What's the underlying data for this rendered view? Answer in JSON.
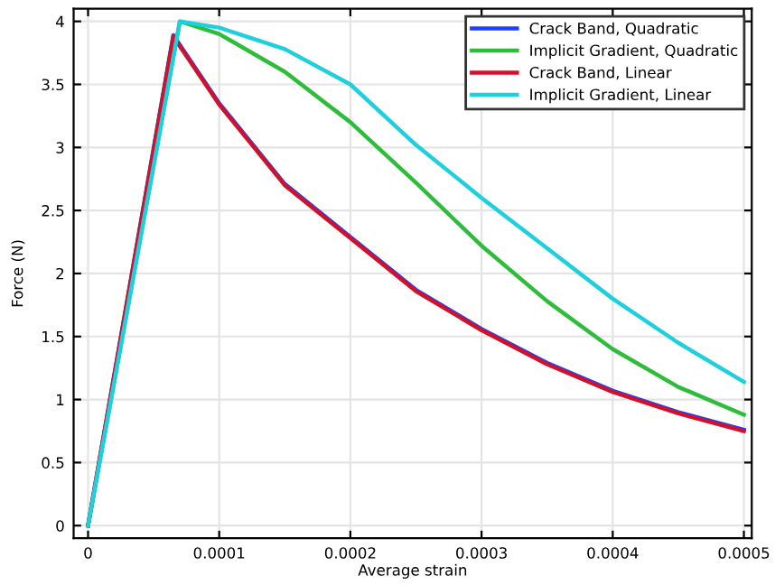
{
  "chart_data": {
    "type": "line",
    "xlabel": "Average strain",
    "ylabel": "Force (N)",
    "xlim": [
      -1.1e-05,
      0.000506
    ],
    "ylim": [
      -0.1,
      4.1
    ],
    "xticks": [
      {
        "value": 0,
        "label": "0"
      },
      {
        "value": 0.0001,
        "label": "0.0001"
      },
      {
        "value": 0.0002,
        "label": "0.0002"
      },
      {
        "value": 0.0003,
        "label": "0.0003"
      },
      {
        "value": 0.0004,
        "label": "0.0004"
      },
      {
        "value": 0.0005,
        "label": "0.0005"
      }
    ],
    "yticks": [
      0,
      0.5,
      1,
      1.5,
      2,
      2.5,
      3,
      3.5,
      4
    ],
    "grid": true,
    "legend": "top right",
    "line_style": "solid",
    "series": [
      {
        "name": "Crack Band, Quadratic",
        "color": "#1f3fff",
        "x": [
          0,
          6.5e-05,
          0.0001,
          0.00015,
          0.0002,
          0.00025,
          0.0003,
          0.00035,
          0.0004,
          0.00045,
          0.0005
        ],
        "values": [
          0,
          3.89,
          3.35,
          2.71,
          2.29,
          1.87,
          1.56,
          1.29,
          1.07,
          0.9,
          0.76
        ]
      },
      {
        "name": "Implicit Gradient, Quadratic",
        "color": "#2ebd3a",
        "x": [
          0,
          7e-05,
          0.0001,
          0.00015,
          0.0002,
          0.00025,
          0.0003,
          0.00035,
          0.0004,
          0.00045,
          0.0005
        ],
        "values": [
          0,
          4.0,
          3.9,
          3.6,
          3.2,
          2.72,
          2.22,
          1.78,
          1.4,
          1.1,
          0.88
        ]
      },
      {
        "name": "Crack Band, Linear",
        "color": "#d0112b",
        "x": [
          0,
          6.5e-05,
          0.0001,
          0.00015,
          0.0002,
          0.00025,
          0.0003,
          0.00035,
          0.0004,
          0.00045,
          0.0005
        ],
        "values": [
          0,
          3.88,
          3.34,
          2.7,
          2.28,
          1.86,
          1.55,
          1.28,
          1.06,
          0.89,
          0.75
        ]
      },
      {
        "name": "Implicit Gradient, Linear",
        "color": "#1ecfdc",
        "x": [
          0,
          7e-05,
          0.0001,
          0.00015,
          0.0002,
          0.00025,
          0.0003,
          0.00035,
          0.0004,
          0.00045,
          0.0005
        ],
        "values": [
          0,
          4.0,
          3.95,
          3.78,
          3.5,
          3.02,
          2.6,
          2.2,
          1.8,
          1.45,
          1.14
        ]
      }
    ]
  }
}
